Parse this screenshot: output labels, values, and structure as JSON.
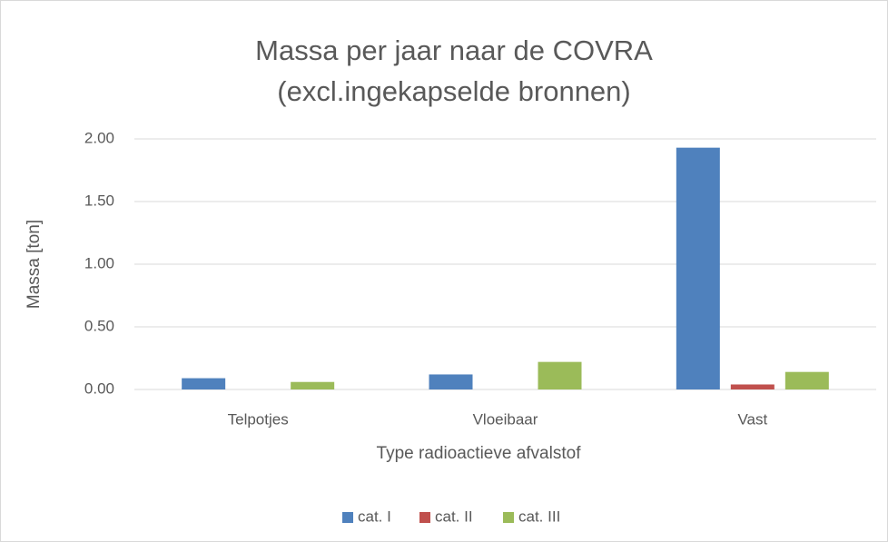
{
  "chart_data": {
    "type": "bar",
    "title": [
      "Massa per jaar naar de COVRA",
      "(excl.ingekapselde bronnen)"
    ],
    "x_label": "Type radioactieve afvalstof",
    "y_label": "Massa [ton]",
    "categories": [
      "Telpotjes",
      "Vloeibaar",
      "Vast"
    ],
    "series": [
      {
        "name": "cat. I",
        "color": "#4f81bd",
        "values": [
          0.09,
          0.12,
          1.93
        ]
      },
      {
        "name": "cat. II",
        "color": "#c0504d",
        "values": [
          0,
          0,
          0.04
        ]
      },
      {
        "name": "cat. III",
        "color": "#9bbb59",
        "values": [
          0.06,
          0.22,
          0.14
        ]
      }
    ],
    "ylim": [
      0,
      2
    ],
    "yticks": [
      {
        "value": 0,
        "label": "0.00"
      },
      {
        "value": 0.5,
        "label": "0.50"
      },
      {
        "value": 1,
        "label": "1.00"
      },
      {
        "value": 1.5,
        "label": "1.50"
      },
      {
        "value": 2,
        "label": "2.00"
      }
    ],
    "grid": true,
    "legend": "bottom"
  }
}
